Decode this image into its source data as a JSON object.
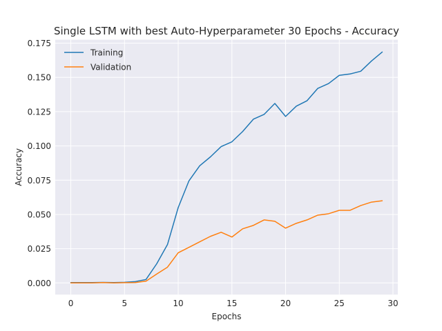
{
  "chart_data": {
    "type": "line",
    "title": "Single LSTM with best Auto-Hyperparameter 30 Epochs - Accuracy",
    "xlabel": "Epochs",
    "ylabel": "Accuracy",
    "xlim": [
      -1.45,
      30.45
    ],
    "ylim": [
      -0.0085,
      0.1775
    ],
    "xticks": [
      0,
      5,
      10,
      15,
      20,
      25,
      30
    ],
    "xtick_labels": [
      "0",
      "5",
      "10",
      "15",
      "20",
      "25",
      "30"
    ],
    "yticks": [
      0.0,
      0.025,
      0.05,
      0.075,
      0.1,
      0.125,
      0.15,
      0.175
    ],
    "ytick_labels": [
      "0.000",
      "0.025",
      "0.050",
      "0.075",
      "0.100",
      "0.125",
      "0.150",
      "0.175"
    ],
    "grid": true,
    "legend_position": "top-left",
    "x": [
      0,
      1,
      2,
      3,
      4,
      5,
      6,
      7,
      8,
      9,
      10,
      11,
      12,
      13,
      14,
      15,
      16,
      17,
      18,
      19,
      20,
      21,
      22,
      23,
      24,
      25,
      26,
      27,
      28,
      29
    ],
    "series": [
      {
        "name": "Training",
        "color": "#1f77b4",
        "values": [
          0.0003,
          0.0003,
          0.0003,
          0.0004,
          0.0003,
          0.0005,
          0.001,
          0.0025,
          0.014,
          0.028,
          0.055,
          0.0745,
          0.0855,
          0.092,
          0.0995,
          0.103,
          0.1105,
          0.1195,
          0.123,
          0.131,
          0.1215,
          0.129,
          0.133,
          0.142,
          0.1455,
          0.1515,
          0.1525,
          0.1545,
          0.162,
          0.1685
        ]
      },
      {
        "name": "Validation",
        "color": "#ff7f0e",
        "values": [
          0.0,
          0.0,
          0.0,
          0.0003,
          0.0,
          0.0002,
          0.0003,
          0.0013,
          0.0065,
          0.0115,
          0.022,
          0.026,
          0.03,
          0.034,
          0.037,
          0.0335,
          0.0395,
          0.042,
          0.046,
          0.045,
          0.04,
          0.0435,
          0.046,
          0.0495,
          0.0505,
          0.053,
          0.053,
          0.0565,
          0.059,
          0.06
        ]
      }
    ]
  },
  "style": {
    "plot_background": "#eaeaf2",
    "grid_color": "#ffffff",
    "text_color": "#262626"
  }
}
